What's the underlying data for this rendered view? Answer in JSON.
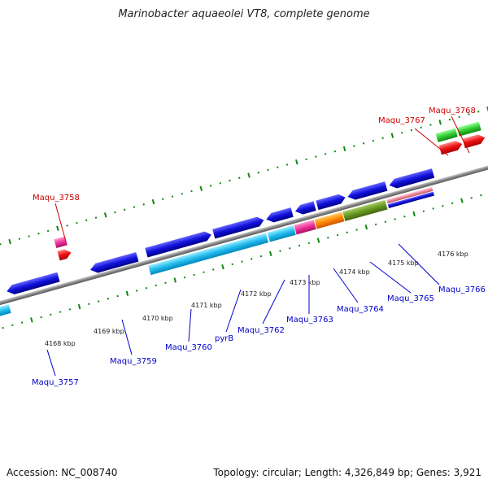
{
  "title": "Marinobacter aquaeolei VT8, complete genome",
  "footer": {
    "accession": "Accession: NC_008740",
    "topology": "Topology: circular; Length: 4,326,849 bp; Genes: 3,921"
  },
  "tick_labels": [
    "4168 kbp",
    "4169 kbp",
    "4170 kbp",
    "4171 kbp",
    "4172 kbp",
    "4173 kbp",
    "4174 kbp",
    "4175 kbp",
    "4176 kbp"
  ],
  "gene_labels_bottom": [
    "Maqu_3757",
    "Maqu_3759",
    "Maqu_3760",
    "pyrB",
    "Maqu_3762",
    "Maqu_3763",
    "Maqu_3764",
    "Maqu_3765",
    "Maqu_3766"
  ],
  "gene_labels_top": [
    "Maqu_3758",
    "Maqu_3767",
    "Maqu_3768"
  ],
  "colors": {
    "forward_gene": "#0000dd",
    "reverse_gene_blue": "#2222ee",
    "cyan": "#22ccee",
    "magenta": "#ee3399",
    "orange": "#ff8800",
    "olive": "#669922",
    "pink": "#ee8899",
    "green": "#33cc33",
    "red": "#ee1111",
    "backbone": "#888888",
    "tick_green": "#118811"
  }
}
